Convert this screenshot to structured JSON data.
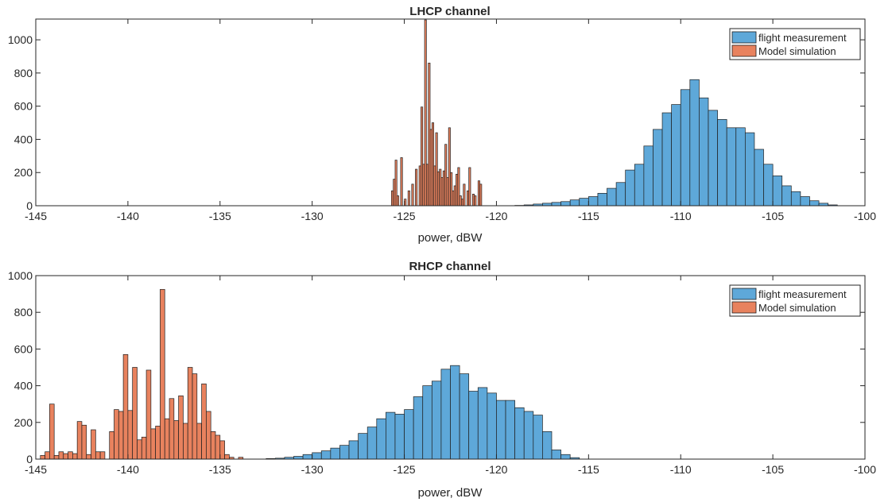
{
  "figure": {
    "background": "#ffffff"
  },
  "chart_data": [
    {
      "type": "bar",
      "title": "LHCP channel",
      "xlabel": "power, dBW",
      "ylabel": "",
      "xlim": [
        -145,
        -100
      ],
      "ylim": [
        0,
        1125
      ],
      "xticks": [
        "-145",
        "-140",
        "-135",
        "-130",
        "-125",
        "-120",
        "-115",
        "-110",
        "-105",
        "-100"
      ],
      "xtick_values": [
        -145,
        -140,
        -135,
        -130,
        -125,
        -120,
        -115,
        -110,
        -105,
        -100
      ],
      "yticks": [
        "0",
        "200",
        "400",
        "600",
        "800",
        "1000"
      ],
      "ytick_values": [
        0,
        200,
        400,
        600,
        800,
        1000
      ],
      "grid": false,
      "legend_placement": "top-right",
      "series": [
        {
          "name": "flight measurement",
          "color": "#5ea8d9",
          "bin_width": 0.5,
          "bins": [
            [
              -119.0,
              2
            ],
            [
              -118.5,
              5
            ],
            [
              -118.0,
              10
            ],
            [
              -117.5,
              15
            ],
            [
              -117.0,
              20
            ],
            [
              -116.5,
              25
            ],
            [
              -116.0,
              35
            ],
            [
              -115.5,
              45
            ],
            [
              -115.0,
              55
            ],
            [
              -114.5,
              75
            ],
            [
              -114.0,
              105
            ],
            [
              -113.5,
              140
            ],
            [
              -113.0,
              215
            ],
            [
              -112.5,
              250
            ],
            [
              -112.0,
              360
            ],
            [
              -111.5,
              460
            ],
            [
              -111.0,
              560
            ],
            [
              -110.5,
              610
            ],
            [
              -110.0,
              700
            ],
            [
              -109.5,
              760
            ],
            [
              -109.0,
              650
            ],
            [
              -108.5,
              575
            ],
            [
              -108.0,
              520
            ],
            [
              -107.5,
              470
            ],
            [
              -107.0,
              470
            ],
            [
              -106.5,
              440
            ],
            [
              -106.0,
              340
            ],
            [
              -105.5,
              250
            ],
            [
              -105.0,
              180
            ],
            [
              -104.5,
              120
            ],
            [
              -104.0,
              85
            ],
            [
              -103.5,
              55
            ],
            [
              -103.0,
              30
            ],
            [
              -102.5,
              15
            ],
            [
              -102.0,
              5
            ]
          ]
        },
        {
          "name": "Model simulation",
          "color": "#e8825e",
          "bin_width": 0.1,
          "bins": [
            [
              -125.7,
              90
            ],
            [
              -125.6,
              160
            ],
            [
              -125.5,
              275
            ],
            [
              -125.4,
              60
            ],
            [
              -125.2,
              290
            ],
            [
              -125.0,
              40
            ],
            [
              -124.8,
              90
            ],
            [
              -124.6,
              130
            ],
            [
              -124.4,
              220
            ],
            [
              -124.2,
              240
            ],
            [
              -124.1,
              595
            ],
            [
              -124.0,
              250
            ],
            [
              -123.9,
              1120
            ],
            [
              -123.8,
              250
            ],
            [
              -123.7,
              860
            ],
            [
              -123.6,
              460
            ],
            [
              -123.5,
              500
            ],
            [
              -123.4,
              240
            ],
            [
              -123.3,
              440
            ],
            [
              -123.2,
              205
            ],
            [
              -123.1,
              220
            ],
            [
              -123.0,
              170
            ],
            [
              -122.9,
              210
            ],
            [
              -122.8,
              370
            ],
            [
              -122.7,
              170
            ],
            [
              -122.6,
              470
            ],
            [
              -122.5,
              200
            ],
            [
              -122.4,
              90
            ],
            [
              -122.3,
              120
            ],
            [
              -122.2,
              190
            ],
            [
              -122.1,
              230
            ],
            [
              -122.0,
              60
            ],
            [
              -121.9,
              40
            ],
            [
              -121.8,
              130
            ],
            [
              -121.6,
              90
            ],
            [
              -121.5,
              230
            ],
            [
              -121.3,
              70
            ],
            [
              -121.2,
              60
            ],
            [
              -121.0,
              150
            ],
            [
              -120.9,
              130
            ]
          ]
        }
      ]
    },
    {
      "type": "bar",
      "title": "RHCP channel",
      "xlabel": "power, dBW",
      "ylabel": "",
      "xlim": [
        -145,
        -100
      ],
      "ylim": [
        0,
        1000
      ],
      "xticks": [
        "-145",
        "-140",
        "-135",
        "-130",
        "-125",
        "-120",
        "-115",
        "-110",
        "-105",
        "-100"
      ],
      "xtick_values": [
        -145,
        -140,
        -135,
        -130,
        -125,
        -120,
        -115,
        -110,
        -105,
        -100
      ],
      "yticks": [
        "0",
        "200",
        "400",
        "600",
        "800",
        "1000"
      ],
      "ytick_values": [
        0,
        200,
        400,
        600,
        800,
        1000
      ],
      "grid": false,
      "legend_placement": "top-right",
      "series": [
        {
          "name": "flight measurement",
          "color": "#5ea8d9",
          "bin_width": 0.5,
          "bins": [
            [
              -132.5,
              3
            ],
            [
              -132.0,
              5
            ],
            [
              -131.5,
              10
            ],
            [
              -131.0,
              15
            ],
            [
              -130.5,
              25
            ],
            [
              -130.0,
              35
            ],
            [
              -129.5,
              45
            ],
            [
              -129.0,
              60
            ],
            [
              -128.5,
              75
            ],
            [
              -128.0,
              100
            ],
            [
              -127.5,
              140
            ],
            [
              -127.0,
              175
            ],
            [
              -126.5,
              220
            ],
            [
              -126.0,
              255
            ],
            [
              -125.5,
              245
            ],
            [
              -125.0,
              270
            ],
            [
              -124.5,
              340
            ],
            [
              -124.0,
              400
            ],
            [
              -123.5,
              425
            ],
            [
              -123.0,
              490
            ],
            [
              -122.5,
              510
            ],
            [
              -122.0,
              465
            ],
            [
              -121.5,
              370
            ],
            [
              -121.0,
              390
            ],
            [
              -120.5,
              360
            ],
            [
              -120.0,
              320
            ],
            [
              -119.5,
              320
            ],
            [
              -119.0,
              280
            ],
            [
              -118.5,
              260
            ],
            [
              -118.0,
              240
            ],
            [
              -117.5,
              150
            ],
            [
              -117.0,
              50
            ],
            [
              -116.5,
              25
            ],
            [
              -116.0,
              8
            ]
          ]
        },
        {
          "name": "Model simulation",
          "color": "#e8825e",
          "bin_width": 0.25,
          "bins": [
            [
              -144.75,
              20
            ],
            [
              -144.5,
              40
            ],
            [
              -144.25,
              300
            ],
            [
              -144.0,
              20
            ],
            [
              -143.75,
              40
            ],
            [
              -143.5,
              30
            ],
            [
              -143.25,
              40
            ],
            [
              -143.0,
              30
            ],
            [
              -142.75,
              205
            ],
            [
              -142.5,
              185
            ],
            [
              -142.25,
              25
            ],
            [
              -142.0,
              160
            ],
            [
              -141.75,
              40
            ],
            [
              -141.5,
              40
            ],
            [
              -141.25,
              0
            ],
            [
              -141.0,
              150
            ],
            [
              -140.75,
              270
            ],
            [
              -140.5,
              260
            ],
            [
              -140.25,
              570
            ],
            [
              -140.0,
              265
            ],
            [
              -139.75,
              500
            ],
            [
              -139.5,
              105
            ],
            [
              -139.25,
              120
            ],
            [
              -139.0,
              485
            ],
            [
              -138.75,
              165
            ],
            [
              -138.5,
              180
            ],
            [
              -138.25,
              925
            ],
            [
              -138.0,
              220
            ],
            [
              -137.75,
              330
            ],
            [
              -137.5,
              210
            ],
            [
              -137.25,
              345
            ],
            [
              -137.0,
              195
            ],
            [
              -136.75,
              500
            ],
            [
              -136.5,
              465
            ],
            [
              -136.25,
              195
            ],
            [
              -136.0,
              410
            ],
            [
              -135.75,
              260
            ],
            [
              -135.5,
              150
            ],
            [
              -135.25,
              130
            ],
            [
              -135.0,
              100
            ],
            [
              -134.75,
              25
            ],
            [
              -134.5,
              10
            ],
            [
              -134.0,
              10
            ]
          ]
        }
      ]
    }
  ]
}
